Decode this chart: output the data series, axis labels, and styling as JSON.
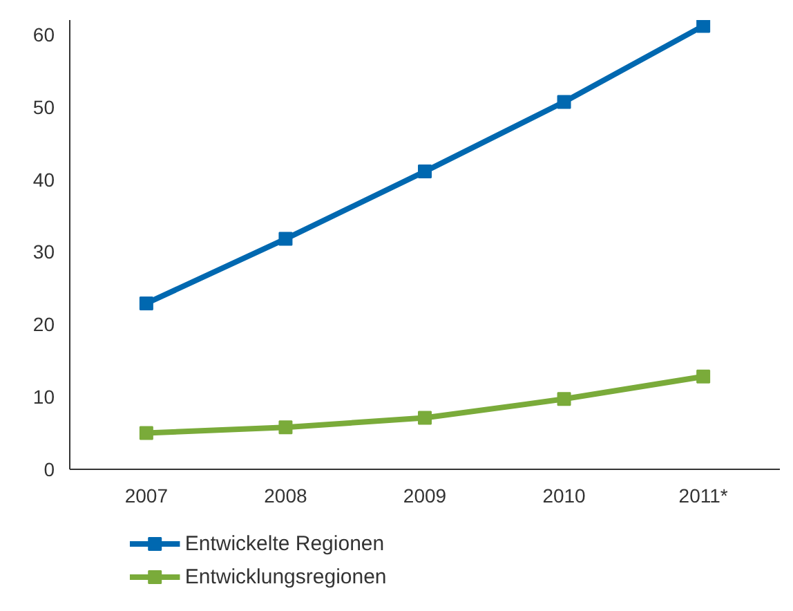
{
  "chart_data": {
    "type": "line",
    "categories": [
      "2007",
      "2008",
      "2009",
      "2010",
      "2011*"
    ],
    "series": [
      {
        "name": "Entwickelte Regionen",
        "color": "#0068b0",
        "values": [
          22.9,
          31.8,
          41.1,
          50.7,
          61.2
        ]
      },
      {
        "name": "Entwicklungsregionen",
        "color": "#7aab3a",
        "values": [
          5.0,
          5.8,
          7.1,
          9.7,
          12.8
        ]
      }
    ],
    "ylim": [
      0,
      62
    ],
    "yticks": [
      0,
      10,
      20,
      30,
      40,
      50,
      60
    ],
    "grid": false,
    "legend": "bottom",
    "marker": "square",
    "line_style": "solid"
  }
}
